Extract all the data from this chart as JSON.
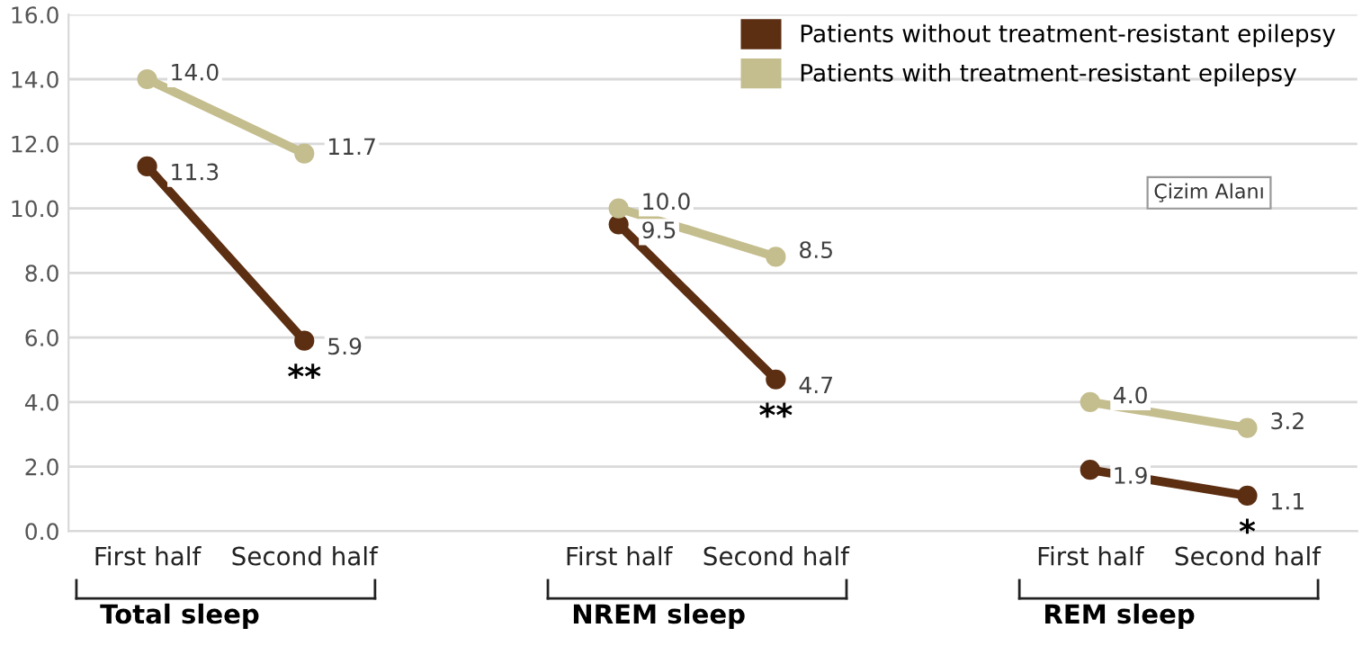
{
  "chart_data": {
    "type": "line",
    "categories": [
      "First half",
      "Second half",
      null,
      "First half",
      "Second half",
      null,
      "First half",
      "Second half"
    ],
    "series": [
      {
        "name": "Patients without treatment-resistant epilepsy",
        "color": "#5c2e12",
        "values": [
          11.3,
          5.9,
          null,
          9.5,
          4.7,
          null,
          1.9,
          1.1
        ],
        "value_labels": [
          "11.3",
          "5.9",
          null,
          "9.5",
          "4.7",
          null,
          "1.9",
          "1.1"
        ]
      },
      {
        "name": "Patients with treatment-resistant epilepsy",
        "color": "#c4bd8e",
        "values": [
          14.0,
          11.7,
          null,
          10.0,
          8.5,
          null,
          4.0,
          3.2
        ],
        "value_labels": [
          "14.0",
          "11.7",
          null,
          "10.0",
          "8.5",
          null,
          "4.0",
          "3.2"
        ]
      }
    ],
    "ylim": [
      0,
      16
    ],
    "yticks": [
      {
        "value": 0,
        "label": "0.0"
      },
      {
        "value": 2,
        "label": "2.0"
      },
      {
        "value": 4,
        "label": "4.0"
      },
      {
        "value": 6,
        "label": "6.0"
      },
      {
        "value": 8,
        "label": "8.0"
      },
      {
        "value": 10,
        "label": "10.0"
      },
      {
        "value": 12,
        "label": "12.0"
      },
      {
        "value": 14,
        "label": "14.0"
      },
      {
        "value": 16,
        "label": "16.0"
      }
    ],
    "grid": "y",
    "legend": "top right",
    "marker": "circle",
    "line_style": "solid",
    "annotations": [
      "Total sleep",
      "NREM sleep",
      "REM sleep",
      "Çizim Alanı",
      "**",
      "**",
      "*"
    ]
  }
}
